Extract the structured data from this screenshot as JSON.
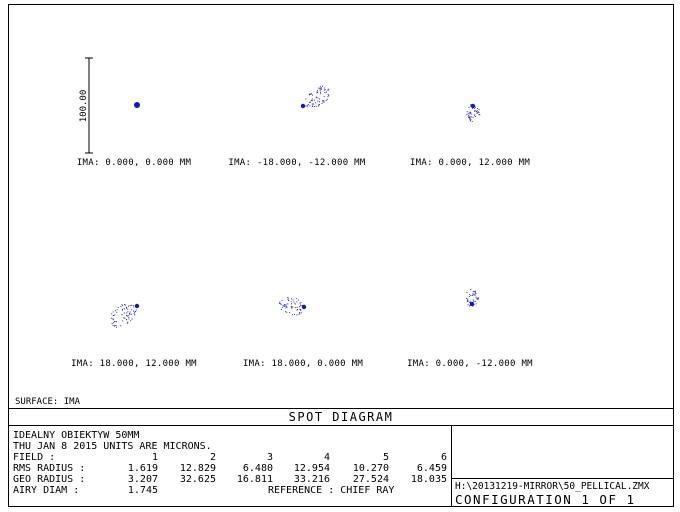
{
  "scale_bar": {
    "label": "100.00"
  },
  "fields": [
    {
      "label": "IMA: 0.000, 0.000 MM"
    },
    {
      "label": "IMA: -18.000, -12.000 MM"
    },
    {
      "label": "IMA: 0.000, 12.000 MM"
    },
    {
      "label": "IMA: 18.000, 12.000 MM"
    },
    {
      "label": "IMA: 18.000, 0.000 MM"
    },
    {
      "label": "IMA: 0.000, -12.000 MM"
    }
  ],
  "surface": "SURFACE: IMA",
  "title": "SPOT DIAGRAM",
  "info": {
    "lens_name": "IDEALNY OBIEKTYW 50MM",
    "date_units": "THU JAN 8 2015  UNITS ARE MICRONS.",
    "field_label": "FIELD       :",
    "field_numbers": [
      "1",
      "2",
      "3",
      "4",
      "5",
      "6"
    ],
    "rms_label": "RMS RADIUS :",
    "rms_values": [
      "1.619",
      "12.829",
      "6.480",
      "12.954",
      "10.270",
      "6.459"
    ],
    "geo_label": "GEO RADIUS :",
    "geo_values": [
      "3.207",
      "32.625",
      "16.811",
      "33.216",
      "27.524",
      "18.035"
    ],
    "airy_label": "AIRY DIAM   :",
    "airy_value": "1.745",
    "reference": "REFERENCE  : CHIEF RAY"
  },
  "file_path": "H:\\20131219-MIRROR\\50_PELLICAL.ZMX",
  "configuration": "CONFIGURATION 1 OF 1",
  "colors": {
    "spot": "#1a1aa8",
    "line": "#000000",
    "background": "#ffffff"
  }
}
